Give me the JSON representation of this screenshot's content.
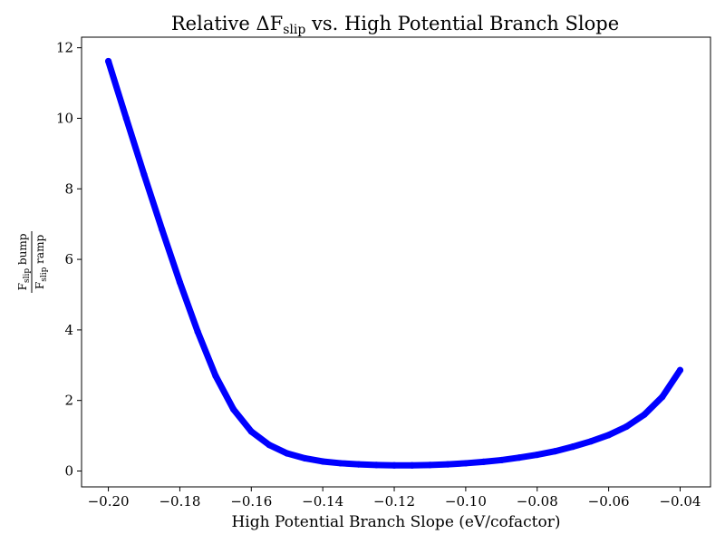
{
  "chart_data": {
    "type": "scatter",
    "title_main": "Relative ΔF",
    "title_sub": "slip",
    "title_rest": " vs. High Potential Branch Slope",
    "xlabel": "High Potential Branch Slope (eV/cofactor)",
    "ylabel": {
      "num_main": "F",
      "num_sub": "slip",
      "num_rest": " bump",
      "den_main": "F",
      "den_sub": "slip",
      "den_rest": " ramp"
    },
    "xlim": [
      -0.2075,
      -0.0315
    ],
    "ylim": [
      -0.45,
      12.3
    ],
    "x_ticks": [
      -0.2,
      -0.18,
      -0.16,
      -0.14,
      -0.12,
      -0.1,
      -0.08,
      -0.06,
      -0.04
    ],
    "x_tick_labels": [
      "−0.20",
      "−0.18",
      "−0.16",
      "−0.14",
      "−0.12",
      "−0.10",
      "−0.08",
      "−0.06",
      "−0.04"
    ],
    "y_ticks": [
      0,
      2,
      4,
      6,
      8,
      10,
      12
    ],
    "y_tick_labels": [
      "0",
      "2",
      "4",
      "6",
      "8",
      "10",
      "12"
    ],
    "grid": false,
    "legend": "none",
    "series": [
      {
        "color": "#0000ff",
        "x": [
          -0.2,
          -0.195,
          -0.19,
          -0.185,
          -0.18,
          -0.175,
          -0.17,
          -0.165,
          -0.16,
          -0.155,
          -0.15,
          -0.145,
          -0.14,
          -0.135,
          -0.13,
          -0.125,
          -0.12,
          -0.115,
          -0.11,
          -0.105,
          -0.1,
          -0.095,
          -0.09,
          -0.085,
          -0.08,
          -0.075,
          -0.07,
          -0.065,
          -0.06,
          -0.055,
          -0.05,
          -0.045,
          -0.04
        ],
        "y": [
          11.62,
          10.0,
          8.4,
          6.85,
          5.35,
          3.95,
          2.7,
          1.75,
          1.12,
          0.74,
          0.5,
          0.36,
          0.27,
          0.22,
          0.19,
          0.17,
          0.16,
          0.16,
          0.17,
          0.19,
          0.22,
          0.26,
          0.31,
          0.38,
          0.46,
          0.56,
          0.69,
          0.84,
          1.02,
          1.26,
          1.6,
          2.1,
          2.86
        ]
      }
    ]
  }
}
